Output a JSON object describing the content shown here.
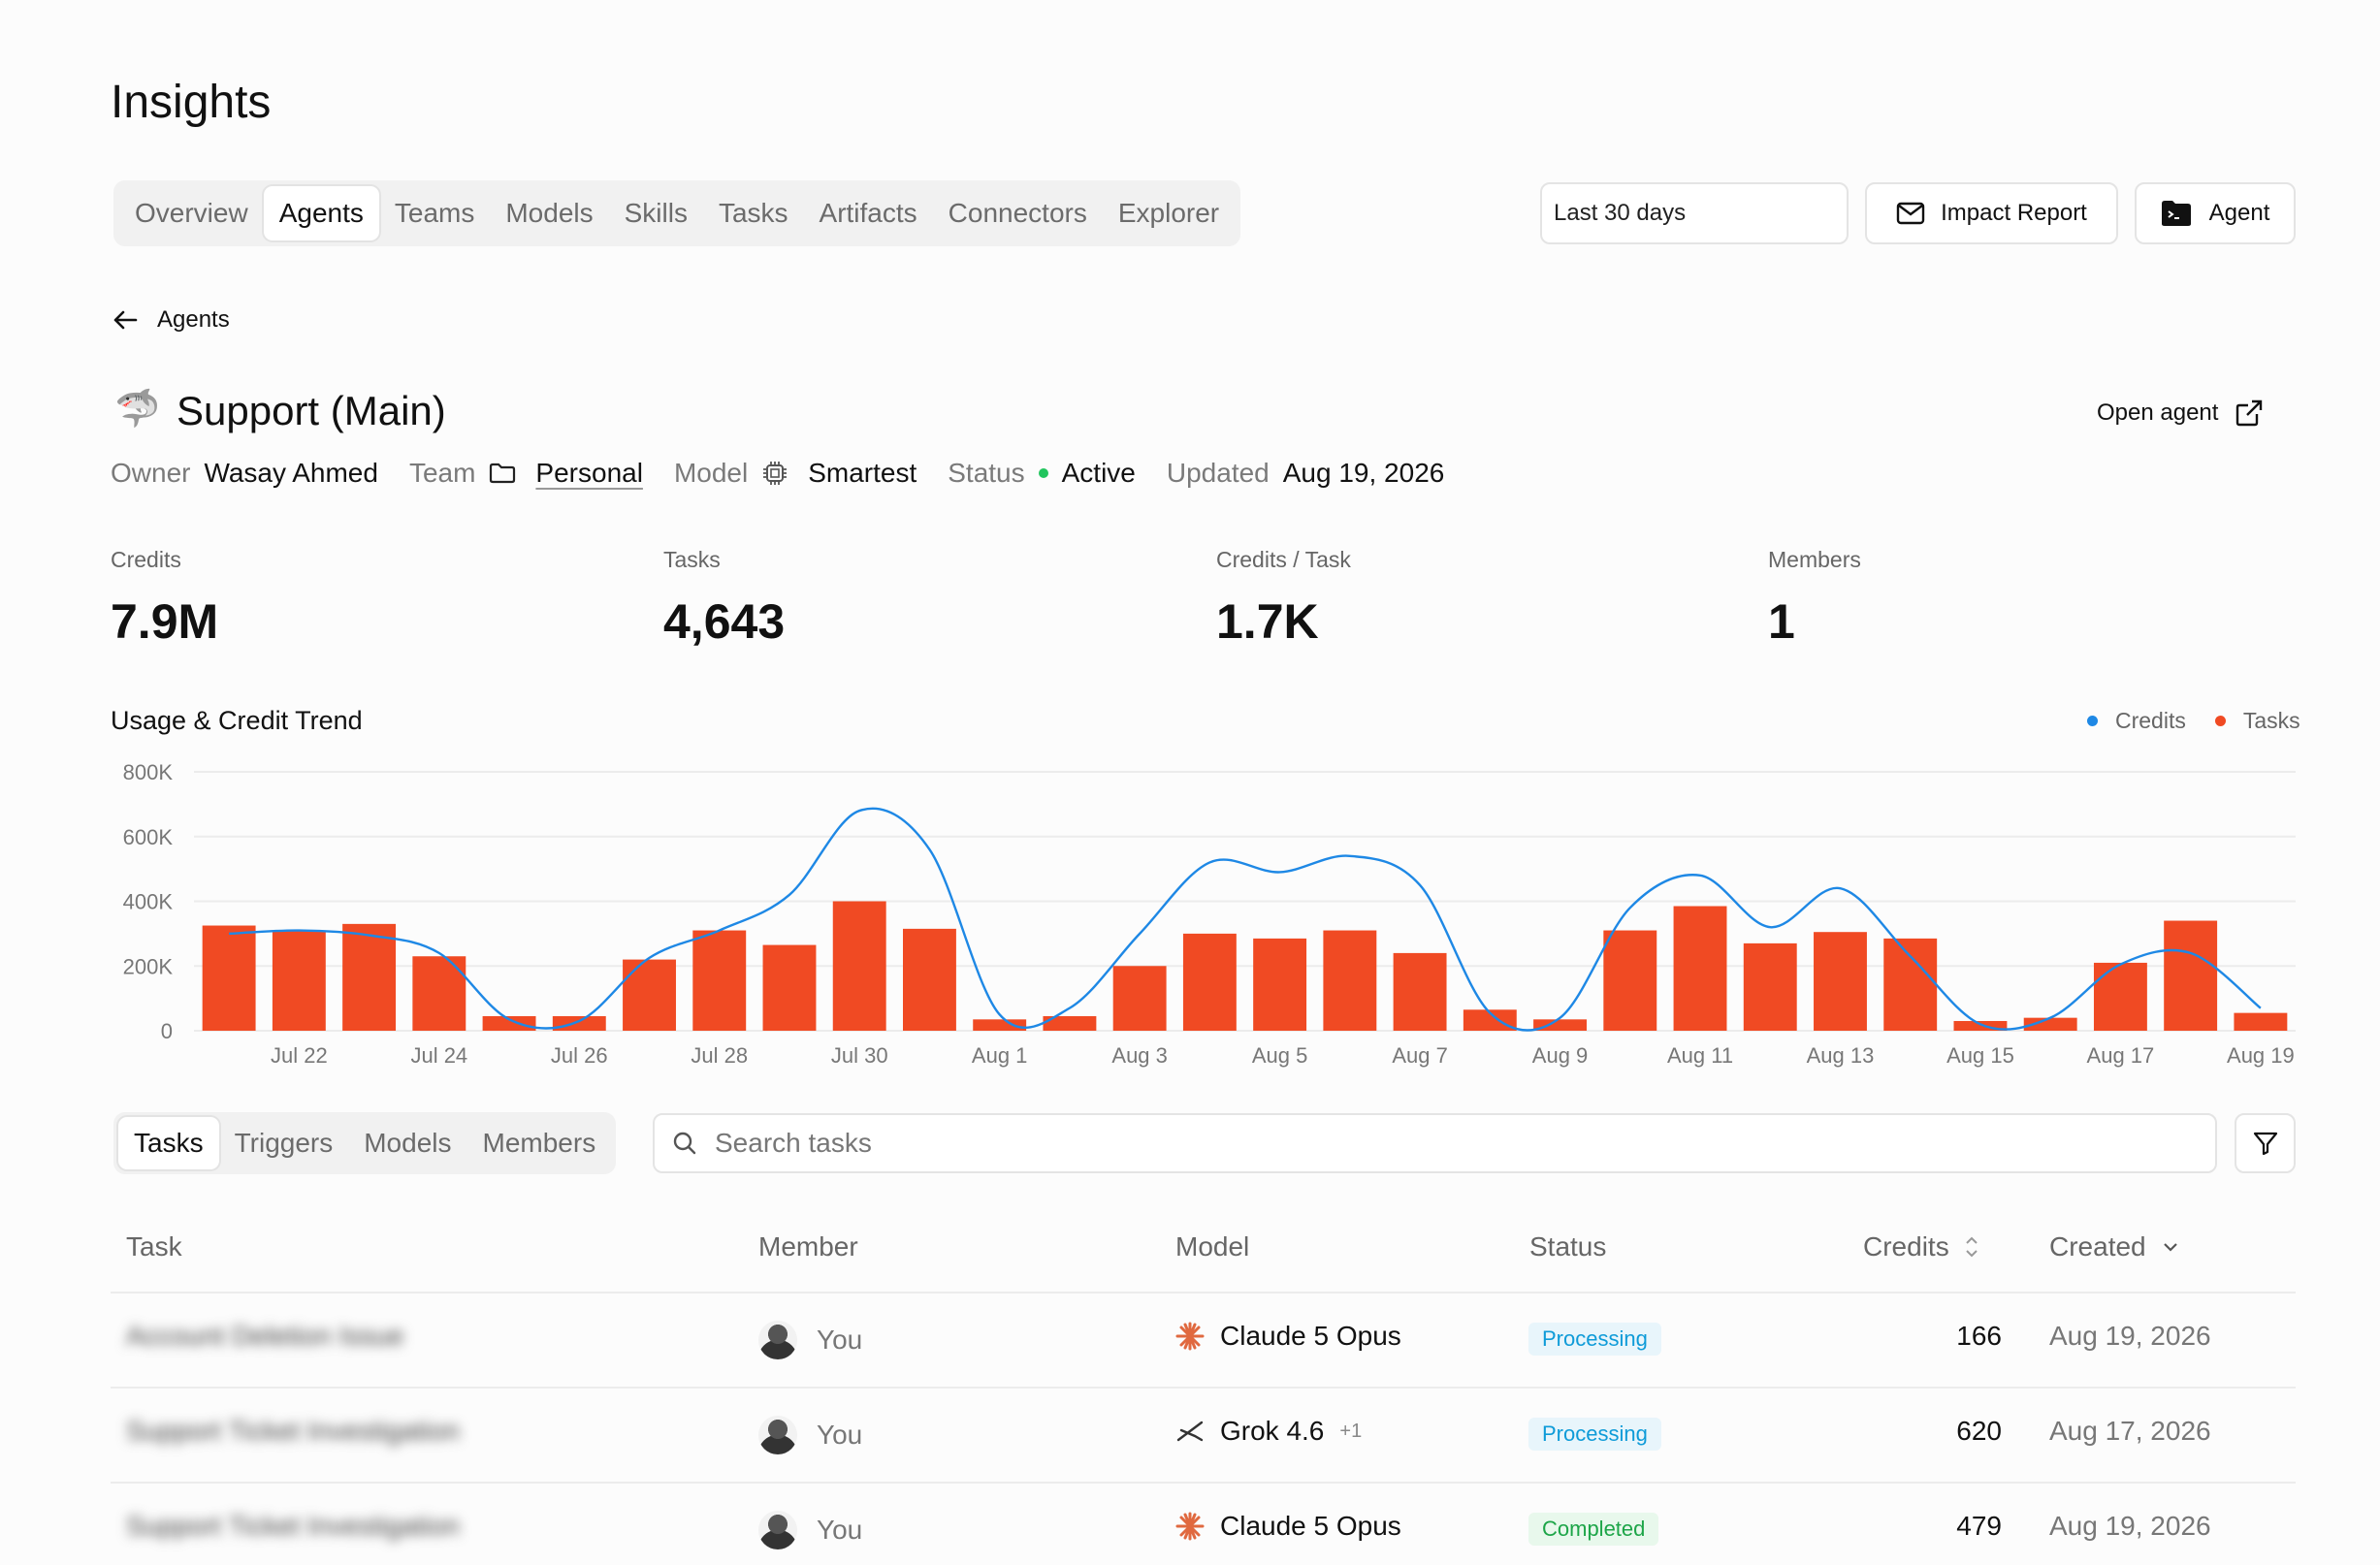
{
  "page": {
    "title": "Insights"
  },
  "nav": {
    "tabs": [
      {
        "label": "Overview"
      },
      {
        "label": "Agents",
        "active": true
      },
      {
        "label": "Teams"
      },
      {
        "label": "Models"
      },
      {
        "label": "Skills"
      },
      {
        "label": "Tasks"
      },
      {
        "label": "Artifacts"
      },
      {
        "label": "Connectors"
      },
      {
        "label": "Explorer"
      }
    ]
  },
  "toolbar": {
    "date_range": "Last 30 days",
    "impact_report_label": "Impact Report",
    "agent_label": "Agent"
  },
  "back": {
    "label": "Agents"
  },
  "agent": {
    "emoji": "🦈",
    "name": "Support (Main)",
    "open_label": "Open agent",
    "meta": {
      "owner_key": "Owner",
      "owner": "Wasay Ahmed",
      "team_key": "Team",
      "team": "Personal",
      "model_key": "Model",
      "model": "Smartest",
      "status_key": "Status",
      "status": "Active",
      "updated_key": "Updated",
      "updated": "Aug 19, 2026"
    }
  },
  "stats": [
    {
      "label": "Credits",
      "value": "7.9M"
    },
    {
      "label": "Tasks",
      "value": "4,643"
    },
    {
      "label": "Credits / Task",
      "value": "1.7K"
    },
    {
      "label": "Members",
      "value": "1"
    }
  ],
  "colors": {
    "credits": "#1e88e5",
    "tasks": "#f04a23",
    "active": "#22c55e"
  },
  "chart_data": {
    "type": "bar",
    "title": "Usage & Credit Trend",
    "legend": [
      "Credits",
      "Tasks"
    ],
    "legend_position": "top-right",
    "ylim": [
      0,
      800000
    ],
    "yticks": [
      "800K",
      "600K",
      "400K",
      "200K",
      "0"
    ],
    "x_tick_labels": [
      "Jul 22",
      "Jul 24",
      "Jul 26",
      "Jul 28",
      "Jul 30",
      "Aug 1",
      "Aug 3",
      "Aug 5",
      "Aug 7",
      "Aug 9",
      "Aug 11",
      "Aug 13",
      "Aug 15",
      "Aug 17",
      "Aug 19"
    ],
    "categories": [
      "Jul 21",
      "Jul 22",
      "Jul 23",
      "Jul 24",
      "Jul 25",
      "Jul 26",
      "Jul 27",
      "Jul 28",
      "Jul 29",
      "Jul 30",
      "Jul 31",
      "Aug 1",
      "Aug 2",
      "Aug 3",
      "Aug 4",
      "Aug 5",
      "Aug 6",
      "Aug 7",
      "Aug 8",
      "Aug 9",
      "Aug 10",
      "Aug 11",
      "Aug 12",
      "Aug 13",
      "Aug 14",
      "Aug 15",
      "Aug 16",
      "Aug 17",
      "Aug 18",
      "Aug 19"
    ],
    "series": [
      {
        "name": "Tasks",
        "kind": "bar",
        "values": [
          325000,
          310000,
          330000,
          230000,
          45000,
          45000,
          220000,
          310000,
          265000,
          400000,
          315000,
          35000,
          45000,
          200000,
          300000,
          285000,
          310000,
          240000,
          65000,
          35000,
          310000,
          385000,
          270000,
          305000,
          285000,
          30000,
          40000,
          210000,
          340000,
          55000
        ]
      },
      {
        "name": "Credits",
        "kind": "line",
        "values": [
          300000,
          310000,
          295000,
          240000,
          35000,
          30000,
          225000,
          310000,
          420000,
          680000,
          560000,
          50000,
          70000,
          300000,
          520000,
          490000,
          540000,
          450000,
          55000,
          40000,
          380000,
          480000,
          320000,
          440000,
          230000,
          20000,
          40000,
          205000,
          240000,
          70000
        ]
      }
    ]
  },
  "subtabs": [
    {
      "label": "Tasks",
      "active": true
    },
    {
      "label": "Triggers"
    },
    {
      "label": "Models"
    },
    {
      "label": "Members"
    }
  ],
  "search": {
    "placeholder": "Search tasks"
  },
  "table": {
    "columns": [
      "Task",
      "Member",
      "Model",
      "Status",
      "Credits",
      "Created"
    ],
    "rows": [
      {
        "task": "Account Deletion Issue",
        "member": "You",
        "model": "Claude 5 Opus",
        "model_icon": "claude-icon",
        "extra": "",
        "status": "Processing",
        "credits": "166",
        "created": "Aug 19, 2026"
      },
      {
        "task": "Support Ticket Investigation",
        "member": "You",
        "model": "Grok 4.6",
        "model_icon": "grok-icon",
        "extra": "+1",
        "status": "Processing",
        "credits": "620",
        "created": "Aug 17, 2026"
      },
      {
        "task": "Support Ticket Investigation",
        "member": "You",
        "model": "Claude 5 Opus",
        "model_icon": "claude-icon",
        "extra": "",
        "status": "Completed",
        "credits": "479",
        "created": "Aug 19, 2026"
      }
    ]
  }
}
